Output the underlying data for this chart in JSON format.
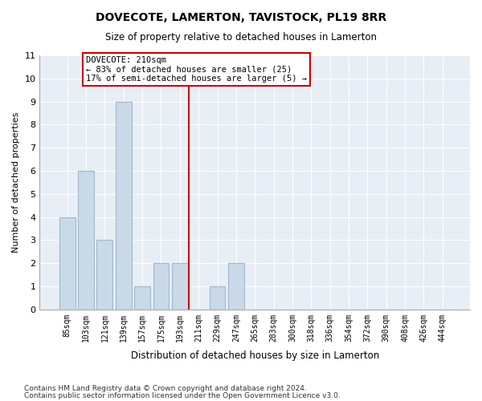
{
  "title": "DOVECOTE, LAMERTON, TAVISTOCK, PL19 8RR",
  "subtitle": "Size of property relative to detached houses in Lamerton",
  "xlabel": "Distribution of detached houses by size in Lamerton",
  "ylabel": "Number of detached properties",
  "bin_labels": [
    "85sqm",
    "103sqm",
    "121sqm",
    "139sqm",
    "157sqm",
    "175sqm",
    "193sqm",
    "211sqm",
    "229sqm",
    "247sqm",
    "265sqm",
    "283sqm",
    "300sqm",
    "318sqm",
    "336sqm",
    "354sqm",
    "372sqm",
    "390sqm",
    "408sqm",
    "426sqm",
    "444sqm"
  ],
  "values": [
    4,
    6,
    3,
    9,
    1,
    2,
    2,
    0,
    1,
    2,
    0,
    0,
    0,
    0,
    0,
    0,
    0,
    0,
    0,
    0,
    0
  ],
  "property_line_x": 6.5,
  "property_size": "210sqm",
  "pct_smaller": 83,
  "n_smaller": 25,
  "pct_larger_semi": 17,
  "n_larger_semi": 5,
  "bar_color": "#c9d9e8",
  "bar_edge_color": "#a0b8cc",
  "line_color": "#cc0000",
  "annotation_box_color": "#cc0000",
  "background_color": "#e8eef5",
  "ylim": [
    0,
    11
  ],
  "yticks": [
    0,
    1,
    2,
    3,
    4,
    5,
    6,
    7,
    8,
    9,
    10,
    11
  ],
  "footer_line1": "Contains HM Land Registry data © Crown copyright and database right 2024.",
  "footer_line2": "Contains public sector information licensed under the Open Government Licence v3.0."
}
